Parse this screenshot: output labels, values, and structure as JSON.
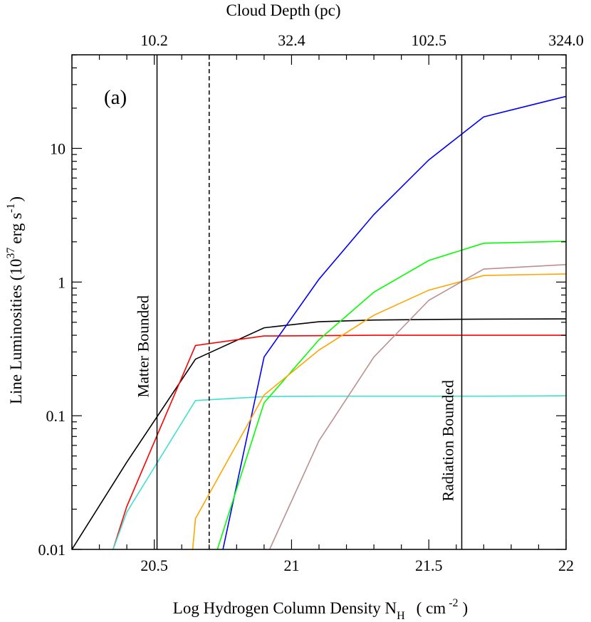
{
  "chart_data": {
    "type": "line",
    "panel_label": "(a)",
    "xlabel": {
      "main": "Log Hydrogen Column Density N",
      "sub": "H",
      "unit_open": "( cm",
      "unit_sup": "-2",
      "unit_close": ")"
    },
    "ylabel": {
      "main": "Line Luminosities (10",
      "sup1": "37",
      "mid": "erg s",
      "sup2": "-1",
      "close": ")"
    },
    "top_axis_label": "Cloud Depth  (pc)",
    "xlim": [
      20.2,
      22.0
    ],
    "ylim_log10": [
      -2,
      1.7
    ],
    "y_scale": "log",
    "x_ticks": [
      {
        "value": 20.5,
        "label": "20.5"
      },
      {
        "value": 21.0,
        "label": "21"
      },
      {
        "value": 21.5,
        "label": "21.5"
      },
      {
        "value": 22.0,
        "label": "22"
      }
    ],
    "y_ticks": [
      {
        "value": 0.01,
        "label": "0.01"
      },
      {
        "value": 0.1,
        "label": "0.1"
      },
      {
        "value": 1,
        "label": "1"
      },
      {
        "value": 10,
        "label": "10"
      }
    ],
    "top_ticks": [
      {
        "x": 20.5,
        "label": "10.2"
      },
      {
        "x": 21.0,
        "label": "32.4"
      },
      {
        "x": 21.5,
        "label": "102.5"
      },
      {
        "x": 22.0,
        "label": "324.0"
      }
    ],
    "vlines": [
      {
        "x": 20.51,
        "style": "solid",
        "label": "Matter Bounded",
        "label_y": 0.33
      },
      {
        "x": 20.7,
        "style": "dashed",
        "label": "",
        "label_y": 0.33
      },
      {
        "x": 21.62,
        "style": "solid",
        "label": "Radiation Bounded",
        "label_y": 0.065
      }
    ],
    "series": [
      {
        "name": "black",
        "color": "#000000",
        "x": [
          20.2,
          20.4,
          20.65,
          20.9,
          21.1,
          21.3,
          21.5,
          21.7,
          22.0
        ],
        "y": [
          0.01,
          0.045,
          0.265,
          0.455,
          0.505,
          0.52,
          0.525,
          0.528,
          0.53
        ]
      },
      {
        "name": "red",
        "color": "#ff0000",
        "x": [
          20.35,
          20.4,
          20.65,
          20.9,
          21.1,
          21.3,
          21.5,
          21.7,
          22.0
        ],
        "y": [
          0.01,
          0.021,
          0.335,
          0.395,
          0.397,
          0.4,
          0.4,
          0.4,
          0.4
        ]
      },
      {
        "name": "turquoise",
        "color": "#40e0d0",
        "x": [
          20.35,
          20.4,
          20.65,
          20.9,
          21.1,
          21.3,
          21.5,
          21.7,
          22.0
        ],
        "y": [
          0.01,
          0.019,
          0.13,
          0.139,
          0.14,
          0.14,
          0.14,
          0.14,
          0.141
        ]
      },
      {
        "name": "blue",
        "color": "#0000ff",
        "x": [
          20.75,
          20.9,
          21.1,
          21.3,
          21.5,
          21.7,
          22.0
        ],
        "y": [
          0.01,
          0.275,
          1.05,
          3.2,
          8.2,
          17.2,
          24.5
        ]
      },
      {
        "name": "green",
        "color": "#00ff00",
        "x": [
          20.73,
          20.9,
          21.1,
          21.3,
          21.5,
          21.7,
          22.0
        ],
        "y": [
          0.01,
          0.125,
          0.37,
          0.84,
          1.45,
          1.95,
          2.02
        ]
      },
      {
        "name": "orange",
        "color": "#ffa500",
        "x": [
          20.64,
          20.65,
          20.9,
          21.1,
          21.3,
          21.5,
          21.7,
          22.0
        ],
        "y": [
          0.01,
          0.017,
          0.143,
          0.31,
          0.565,
          0.87,
          1.12,
          1.15
        ]
      },
      {
        "name": "rosybrown",
        "color": "#bc8f8f",
        "x": [
          20.92,
          21.1,
          21.3,
          21.5,
          21.7,
          22.0
        ],
        "y": [
          0.01,
          0.065,
          0.275,
          0.73,
          1.25,
          1.35
        ]
      }
    ]
  }
}
